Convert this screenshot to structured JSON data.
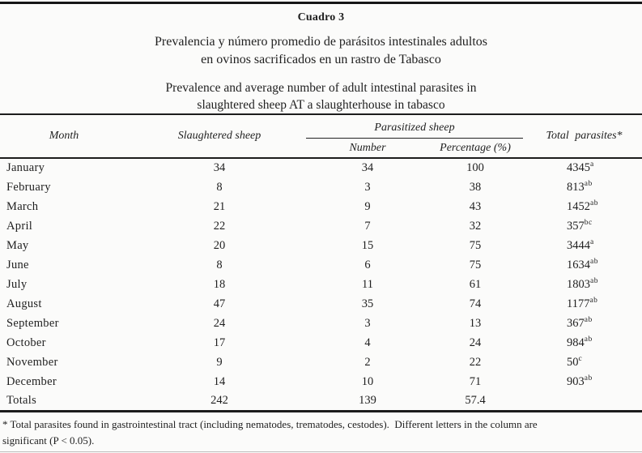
{
  "caption": {
    "label": "Cuadro 3",
    "spanish": [
      "Prevalencia y número promedio de parásitos intestinales adultos",
      "en ovinos sacrificados en un rastro de Tabasco"
    ],
    "english": [
      "Prevalence and average number of adult intestinal parasites in",
      "slaughtered sheep AT a slaughterhouse in tabasco"
    ]
  },
  "table": {
    "headers": {
      "month": "Month",
      "slaughtered": "Slaughtered sheep",
      "parasitized_group": "Parasitized sheep",
      "number": "Number",
      "percentage": "Percentage (%)",
      "total": "Total parasites*"
    },
    "rows": [
      {
        "month": "January",
        "slaughtered": "34",
        "number": "34",
        "percentage": "100",
        "total": "4345",
        "total_sup": "a"
      },
      {
        "month": "February",
        "slaughtered": "8",
        "number": "3",
        "percentage": "38",
        "total": "813",
        "total_sup": "ab"
      },
      {
        "month": "March",
        "slaughtered": "21",
        "number": "9",
        "percentage": "43",
        "total": "1452",
        "total_sup": "ab"
      },
      {
        "month": "April",
        "slaughtered": "22",
        "number": "7",
        "percentage": "32",
        "total": "357",
        "total_sup": "bc"
      },
      {
        "month": "May",
        "slaughtered": "20",
        "number": "15",
        "percentage": "75",
        "total": "3444",
        "total_sup": "a"
      },
      {
        "month": "June",
        "slaughtered": "8",
        "number": "6",
        "percentage": "75",
        "total": "1634",
        "total_sup": "ab"
      },
      {
        "month": "July",
        "slaughtered": "18",
        "number": "11",
        "percentage": "61",
        "total": "1803",
        "total_sup": "ab"
      },
      {
        "month": "August",
        "slaughtered": "47",
        "number": "35",
        "percentage": "74",
        "total": "1177",
        "total_sup": "ab"
      },
      {
        "month": "September",
        "slaughtered": "24",
        "number": "3",
        "percentage": "13",
        "total": "367",
        "total_sup": "ab"
      },
      {
        "month": "October",
        "slaughtered": "17",
        "number": "4",
        "percentage": "24",
        "total": "984",
        "total_sup": "ab"
      },
      {
        "month": "November",
        "slaughtered": "9",
        "number": "2",
        "percentage": "22",
        "total": "50",
        "total_sup": "c"
      },
      {
        "month": "December",
        "slaughtered": "14",
        "number": "10",
        "percentage": "71",
        "total": "903",
        "total_sup": "ab"
      },
      {
        "month": "Totals",
        "slaughtered": "242",
        "number": "139",
        "percentage": "57.4",
        "total": "",
        "total_sup": ""
      }
    ]
  },
  "footnote": {
    "line1": "* Total parasites found in gastrointestinal tract (including nematodes, trematodes, cestodes).  Different letters in the column are",
    "line2": "significant (P < 0.05)."
  },
  "colors": {
    "text": "#1f1f1f",
    "rule": "#1c1c1c",
    "background": "#fbfbfa"
  }
}
